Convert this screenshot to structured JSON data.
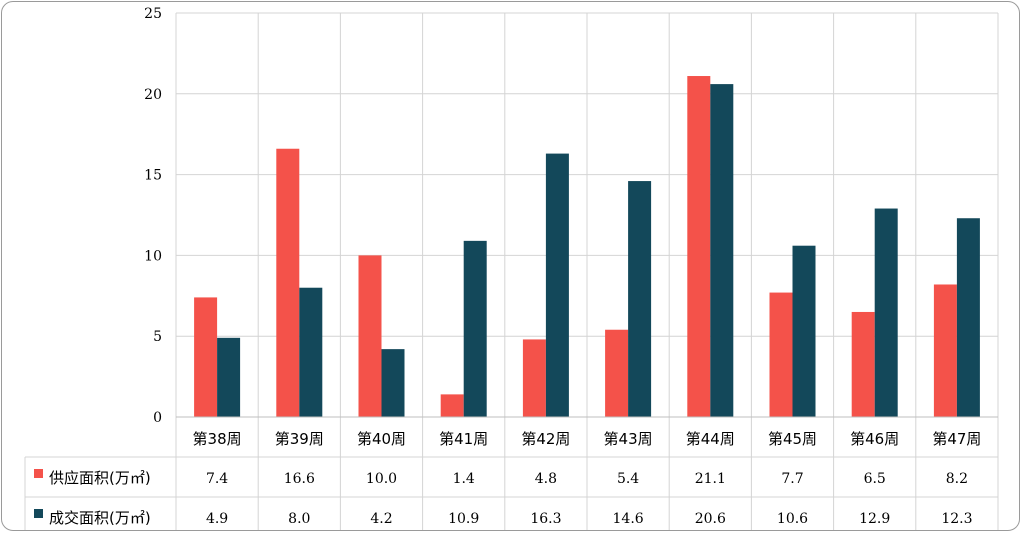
{
  "chart_data": {
    "type": "bar",
    "categories": [
      "第38周",
      "第39周",
      "第40周",
      "第41周",
      "第42周",
      "第43周",
      "第44周",
      "第45周",
      "第46周",
      "第47周"
    ],
    "series": [
      {
        "name": "供应面积(万㎡)",
        "color": "#f4524a",
        "values": [
          "7.4",
          "16.6",
          "10.0",
          "1.4",
          "4.8",
          "5.4",
          "21.1",
          "7.7",
          "6.5",
          "8.2"
        ]
      },
      {
        "name": "成交面积(万㎡)",
        "color": "#13485a",
        "values": [
          "4.9",
          "8.0",
          "4.2",
          "10.9",
          "16.3",
          "14.6",
          "20.6",
          "10.6",
          "12.9",
          "12.3"
        ]
      }
    ],
    "y_ticks": [
      "0",
      "5",
      "10",
      "15",
      "20",
      "25"
    ],
    "ylim": [
      0,
      25
    ],
    "grid": true,
    "data_table": true
  }
}
